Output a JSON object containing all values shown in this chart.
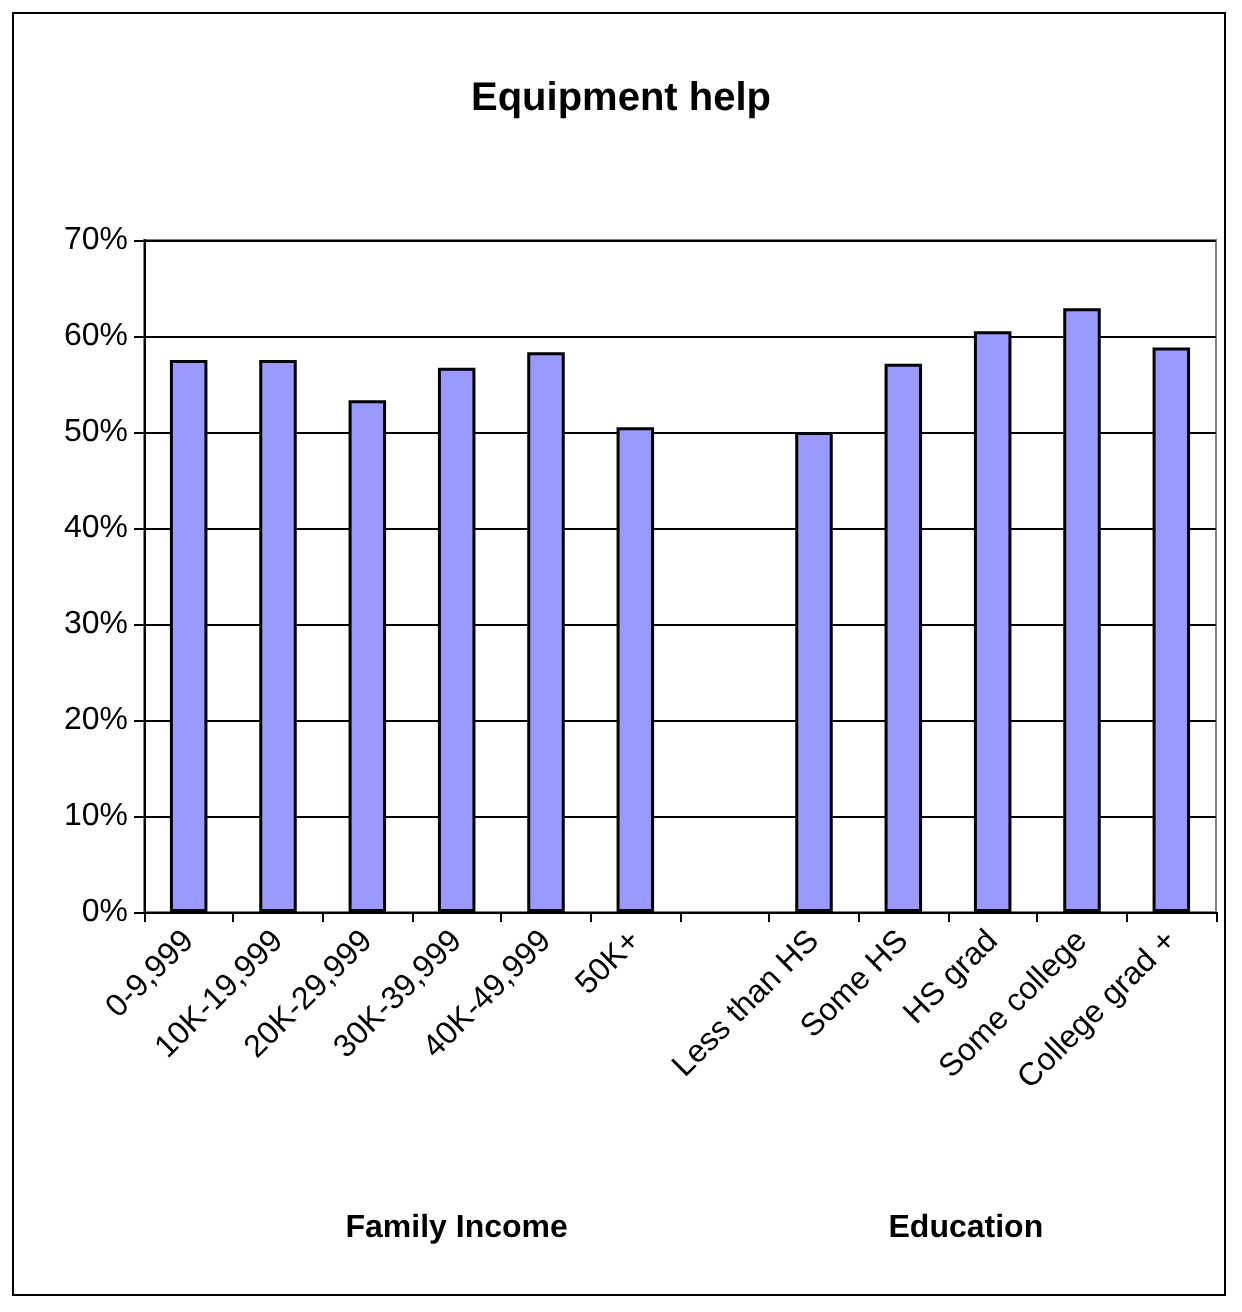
{
  "chart_data": {
    "type": "bar",
    "title": "Equipment help",
    "categories": [
      "0-9,999",
      "10K-19,999",
      "20K-29,999",
      "30K-39,999",
      "40K-49,999",
      "50K+",
      null,
      "Less than HS",
      "Some HS",
      "HS grad",
      "Some college",
      "College grad +"
    ],
    "values": [
      57.5,
      57.5,
      53.3,
      56.7,
      58.3,
      50.5,
      null,
      50.0,
      57.1,
      60.5,
      62.9,
      58.8
    ],
    "color": "#9999ff",
    "ylim": [
      0,
      70
    ],
    "yticks": [
      {
        "value": 0,
        "label": "0%"
      },
      {
        "value": 10,
        "label": "10%"
      },
      {
        "value": 20,
        "label": "20%"
      },
      {
        "value": 30,
        "label": "30%"
      },
      {
        "value": 40,
        "label": "40%"
      },
      {
        "value": 50,
        "label": "50%"
      },
      {
        "value": 60,
        "label": "60%"
      },
      {
        "value": 70,
        "label": "70%"
      }
    ],
    "grid": "y",
    "annotations": [
      "Family Income",
      "Education"
    ]
  }
}
